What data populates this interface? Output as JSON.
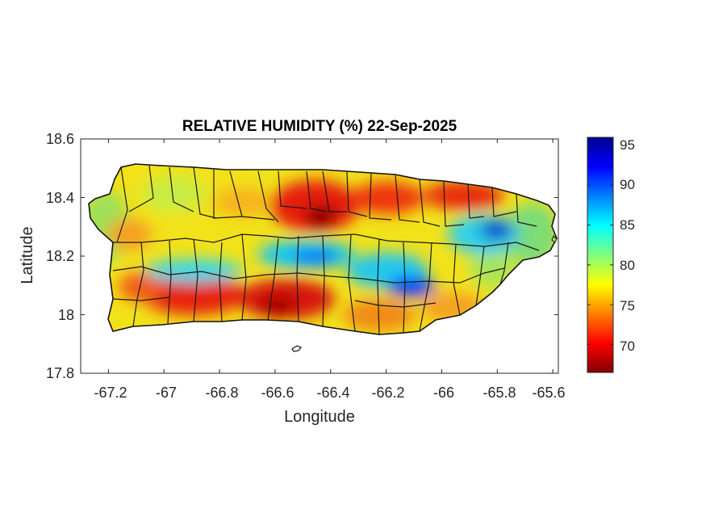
{
  "title": "RELATIVE HUMIDITY (%) 22-Sep-2025",
  "xlabel": "Longitude",
  "ylabel": "Latitude",
  "x_ticks": [
    "-67.2",
    "-67",
    "-66.8",
    "-66.6",
    "-66.4",
    "-66.2",
    "-66",
    "-65.8",
    "-65.6"
  ],
  "y_ticks": [
    "18.6",
    "18.4",
    "18.2",
    "18",
    "17.8"
  ],
  "colorbar_ticks": [
    "95",
    "90",
    "85",
    "80",
    "75",
    "70"
  ],
  "chart_data": {
    "type": "heatmap",
    "title": "RELATIVE HUMIDITY (%) 22-Sep-2025",
    "xlabel": "Longitude",
    "ylabel": "Latitude",
    "xlim": [
      -67.3,
      -65.58
    ],
    "ylim": [
      17.8,
      18.6
    ],
    "x_ticks": [
      -67.2,
      -67.0,
      -66.8,
      -66.6,
      -66.4,
      -66.2,
      -66.0,
      -65.8,
      -65.6
    ],
    "y_ticks": [
      17.8,
      18.0,
      18.2,
      18.4,
      18.6
    ],
    "colorbar": {
      "colormap": "jet",
      "clim": [
        66.5,
        96
      ],
      "ticks": [
        70,
        75,
        80,
        85,
        90,
        95
      ]
    },
    "region": "Puerto Rico",
    "grid": false,
    "humidity_features": [
      {
        "lon": -66.45,
        "lat": 18.33,
        "value": 67
      },
      {
        "lon": -66.55,
        "lat": 18.4,
        "value": 70
      },
      {
        "lon": -66.6,
        "lat": 18.02,
        "value": 68
      },
      {
        "lon": -66.8,
        "lat": 18.05,
        "value": 70
      },
      {
        "lon": -66.98,
        "lat": 18.08,
        "value": 70
      },
      {
        "lon": -66.2,
        "lat": 18.38,
        "value": 71
      },
      {
        "lon": -66.0,
        "lat": 18.4,
        "value": 70
      },
      {
        "lon": -65.85,
        "lat": 18.4,
        "value": 71
      },
      {
        "lon": -66.15,
        "lat": 17.98,
        "value": 72
      },
      {
        "lon": -65.8,
        "lat": 18.29,
        "value": 95
      },
      {
        "lon": -66.05,
        "lat": 18.1,
        "value": 92
      },
      {
        "lon": -66.5,
        "lat": 18.2,
        "value": 88
      },
      {
        "lon": -66.7,
        "lat": 18.16,
        "value": 86
      },
      {
        "lon": -66.3,
        "lat": 18.16,
        "value": 85
      },
      {
        "lon": -67.05,
        "lat": 18.45,
        "value": 76
      },
      {
        "lon": -67.25,
        "lat": 18.2,
        "value": 79
      },
      {
        "lon": -65.7,
        "lat": 18.2,
        "value": 80
      }
    ]
  },
  "colors": {
    "jet": [
      "#00008f",
      "#0000ff",
      "#00ffff",
      "#ffff00",
      "#ff0000",
      "#800000"
    ]
  }
}
